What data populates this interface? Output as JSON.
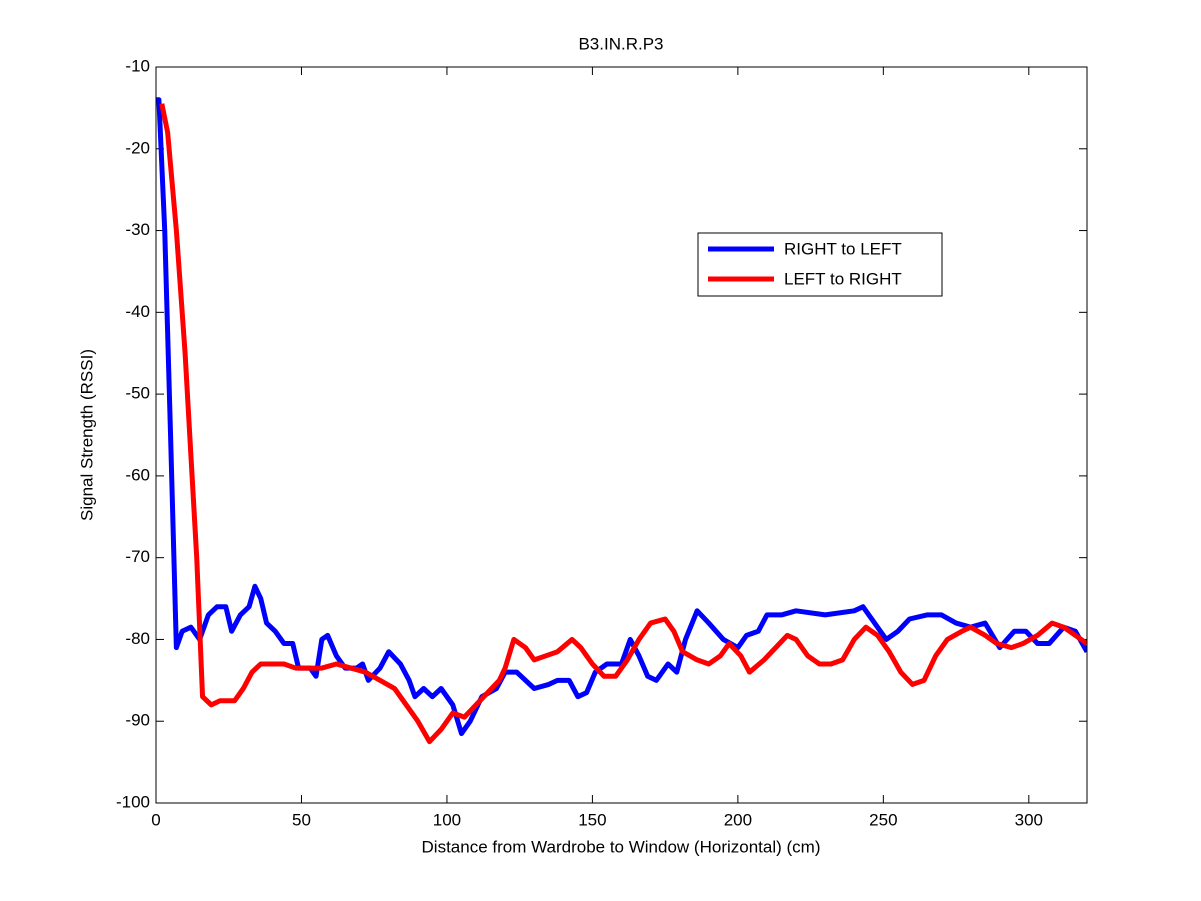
{
  "chart_data": {
    "type": "line",
    "title": "B3.IN.R.P3",
    "x_label": "Distance from Wardrobe to Window (Horizontal)  (cm)",
    "y_label": "Signal Strength (RSSI)",
    "xlim": [
      0,
      320
    ],
    "xticks": [
      0,
      50,
      100,
      150,
      200,
      250,
      300
    ],
    "ylim": [
      -100,
      -10
    ],
    "yticks": [
      -100,
      -90,
      -80,
      -70,
      -60,
      -50,
      -40,
      -30,
      -20,
      -10
    ],
    "grid": false,
    "legend_loc": "upper right",
    "series": [
      {
        "name": "RIGHT to LEFT",
        "color": "#0000ff",
        "x": [
          0,
          1,
          3,
          5,
          7,
          9,
          12,
          15,
          18,
          21,
          24,
          26,
          29,
          32,
          34,
          36,
          38,
          41,
          44,
          47,
          49,
          53,
          55,
          57,
          59,
          62,
          65,
          69,
          71,
          73,
          77,
          80,
          84,
          87,
          89,
          92,
          95,
          98,
          102,
          105,
          108,
          112,
          117,
          120,
          124,
          127,
          130,
          135,
          138,
          142,
          145,
          148,
          151,
          155,
          160,
          163,
          166,
          169,
          172,
          176,
          179,
          182,
          186,
          190,
          195,
          200,
          203,
          207,
          210,
          215,
          220,
          230,
          240,
          243,
          247,
          251,
          255,
          259,
          265,
          270,
          275,
          280,
          285,
          290,
          295,
          299,
          303,
          307,
          312,
          316,
          320
        ],
        "values": [
          -14,
          -14,
          -30,
          -55,
          -81,
          -79,
          -78.5,
          -80,
          -77,
          -76,
          -76,
          -79,
          -77,
          -76,
          -73.5,
          -75,
          -78,
          -79,
          -80.5,
          -80.5,
          -83.5,
          -83.5,
          -84.5,
          -80,
          -79.5,
          -82,
          -83.5,
          -83.5,
          -83,
          -85,
          -83.5,
          -81.5,
          -83,
          -85,
          -87,
          -86,
          -87,
          -86,
          -88,
          -91.5,
          -90,
          -87,
          -86,
          -84,
          -84,
          -85,
          -86,
          -85.5,
          -85,
          -85,
          -87,
          -86.5,
          -84,
          -83,
          -83,
          -80,
          -82,
          -84.5,
          -85,
          -83,
          -84,
          -80,
          -76.5,
          -78,
          -80,
          -81,
          -79.5,
          -79,
          -77,
          -77,
          -76.5,
          -77,
          -76.5,
          -76,
          -78,
          -80,
          -79,
          -77.5,
          -77,
          -77,
          -78,
          -78.5,
          -78,
          -81,
          -79,
          -79,
          -80.5,
          -80.5,
          -78.5,
          -79,
          -81.5
        ]
      },
      {
        "name": "LEFT to RIGHT",
        "color": "#ff0000",
        "x": [
          2,
          4,
          7,
          10,
          14,
          16,
          19,
          22,
          27,
          30,
          33,
          36,
          40,
          44,
          48,
          52,
          57,
          62,
          67,
          72,
          77,
          82,
          86,
          90,
          94,
          98,
          102,
          106,
          110,
          114,
          118,
          120,
          123,
          127,
          130,
          134,
          138,
          143,
          146,
          150,
          154,
          158,
          162,
          166,
          170,
          175,
          178,
          181,
          186,
          190,
          194,
          197,
          201,
          204,
          209,
          213,
          217,
          220,
          224,
          228,
          232,
          236,
          240,
          244,
          248,
          252,
          256,
          260,
          264,
          268,
          272,
          277,
          280,
          285,
          289,
          294,
          298,
          303,
          308,
          312,
          316,
          320
        ],
        "values": [
          -14.5,
          -18,
          -30,
          -45,
          -70,
          -87,
          -88,
          -87.5,
          -87.5,
          -86,
          -84,
          -83,
          -83,
          -83,
          -83.5,
          -83.5,
          -83.5,
          -83,
          -83.5,
          -84,
          -85,
          -86,
          -88,
          -90,
          -92.5,
          -91,
          -89,
          -89.5,
          -88,
          -86.5,
          -85,
          -83.5,
          -80,
          -81,
          -82.5,
          -82,
          -81.5,
          -80,
          -81,
          -83,
          -84.5,
          -84.5,
          -82.5,
          -80,
          -78,
          -77.5,
          -79,
          -81.5,
          -82.5,
          -83,
          -82,
          -80.5,
          -82,
          -84,
          -82.5,
          -81,
          -79.5,
          -80,
          -82,
          -83,
          -83,
          -82.5,
          -80,
          -78.5,
          -79.5,
          -81.5,
          -84,
          -85.5,
          -85,
          -82,
          -80,
          -79,
          -78.5,
          -79.5,
          -80.5,
          -81,
          -80.5,
          -79.5,
          -78,
          -78.5,
          -79.5,
          -80.5
        ]
      }
    ]
  }
}
